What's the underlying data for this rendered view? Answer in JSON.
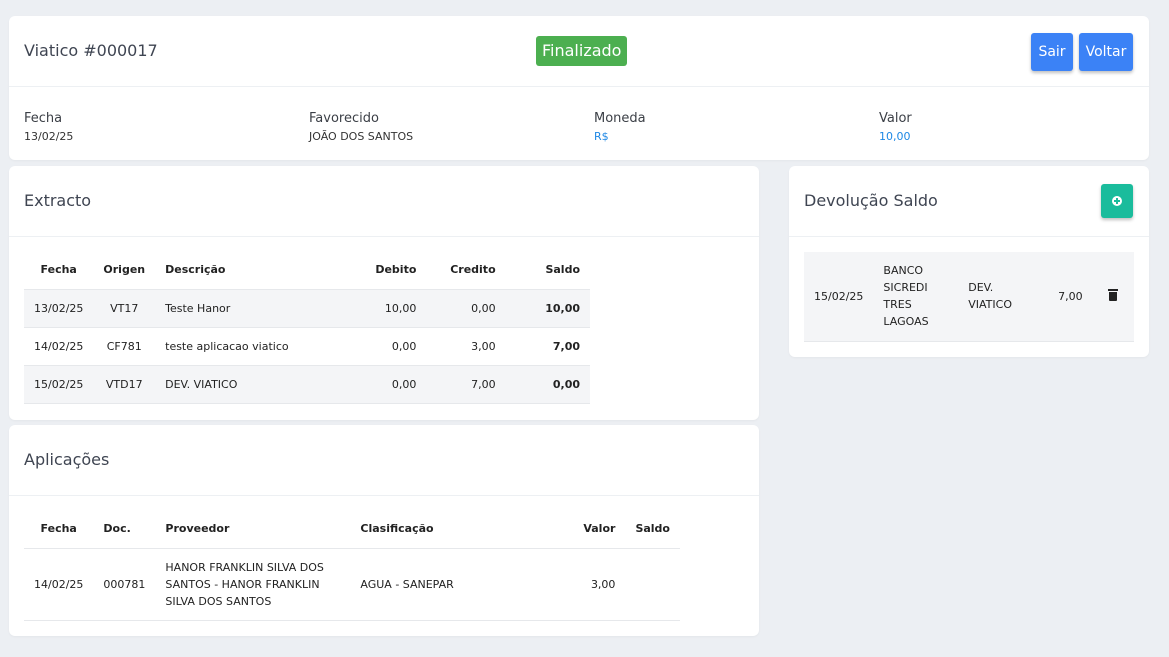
{
  "header": {
    "title": "Viatico #000017",
    "status": "Finalizado",
    "buttons": {
      "sair": "Sair",
      "voltar": "Voltar"
    },
    "fields": [
      {
        "label": "Fecha",
        "value": "13/02/25"
      },
      {
        "label": "Favorecido",
        "value": "JOÃO DOS SANTOS"
      },
      {
        "label": "Moneda",
        "value": "R$"
      },
      {
        "label": "Valor",
        "value": "10,00"
      }
    ]
  },
  "extracto": {
    "title": "Extracto",
    "columns": [
      "Fecha",
      "Origen",
      "Descrição",
      "Debito",
      "Credito",
      "Saldo"
    ],
    "rows": [
      {
        "fecha": "13/02/25",
        "origen": "VT17",
        "descricao": "Teste Hanor",
        "debito": "10,00",
        "credito": "0,00",
        "saldo": "10,00"
      },
      {
        "fecha": "14/02/25",
        "origen": "CF781",
        "descricao": "teste aplicacao viatico",
        "debito": "0,00",
        "credito": "3,00",
        "saldo": "7,00"
      },
      {
        "fecha": "15/02/25",
        "origen": "VTD17",
        "descricao": "DEV. VIATICO",
        "debito": "0,00",
        "credito": "7,00",
        "saldo": "0,00"
      }
    ]
  },
  "aplicacoes": {
    "title": "Aplicações",
    "columns": [
      "Fecha",
      "Doc.",
      "Proveedor",
      "Clasificação",
      "Valor",
      "Saldo"
    ],
    "rows": [
      {
        "fecha": "14/02/25",
        "doc": "000781",
        "proveedor": "HANOR FRANKLIN SILVA DOS SANTOS - HANOR FRANKLIN SILVA DOS SANTOS",
        "clasificacao": "AGUA - SANEPAR",
        "valor": "3,00",
        "saldo": ""
      }
    ]
  },
  "devolucao": {
    "title": "Devolução Saldo",
    "add_icon": "plus-circle-icon",
    "rows": [
      {
        "fecha": "15/02/25",
        "banco": "BANCO SICREDI TRES LAGOAS",
        "descricao": "DEV. VIATICO",
        "valor": "7,00",
        "action_icon": "trash-icon"
      }
    ]
  },
  "colors": {
    "primary": "#3b82f6",
    "success": "#4caf50",
    "teal": "#1abc9c",
    "link": "#1e88e5"
  }
}
